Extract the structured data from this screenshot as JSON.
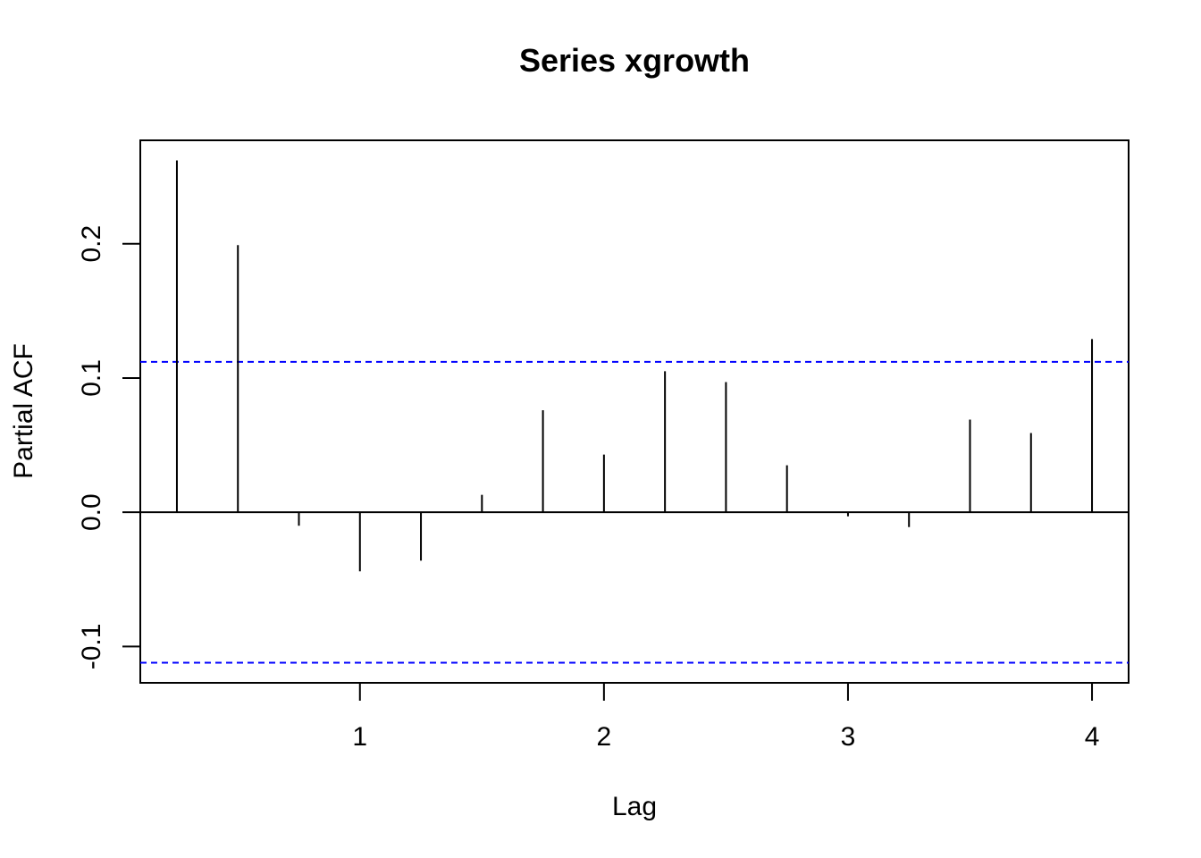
{
  "chart_data": {
    "type": "bar",
    "title": "Series  xgrowth",
    "xlabel": "Lag",
    "ylabel": "Partial ACF",
    "x": [
      0.25,
      0.5,
      0.75,
      1.0,
      1.25,
      1.5,
      1.75,
      2.0,
      2.25,
      2.5,
      2.75,
      3.0,
      3.25,
      3.5,
      3.75,
      4.0
    ],
    "values": [
      0.262,
      0.199,
      -0.01,
      -0.044,
      -0.036,
      0.013,
      0.076,
      0.043,
      0.105,
      0.097,
      0.035,
      -0.003,
      -0.011,
      0.069,
      0.059,
      0.129
    ],
    "confidence_bound": 0.112,
    "xlim": [
      0.1,
      4.15
    ],
    "ylim": [
      -0.127,
      0.277
    ],
    "xticks": [
      1,
      2,
      3,
      4
    ],
    "yticks": [
      -0.1,
      0.0,
      0.1,
      0.2
    ],
    "xtick_labels": [
      "1",
      "2",
      "3",
      "4"
    ],
    "ytick_labels": [
      "-0.1",
      "0.0",
      "0.1",
      "0.2"
    ],
    "bound_color": "#0000ff",
    "bar_color": "#000000",
    "grid": false
  }
}
